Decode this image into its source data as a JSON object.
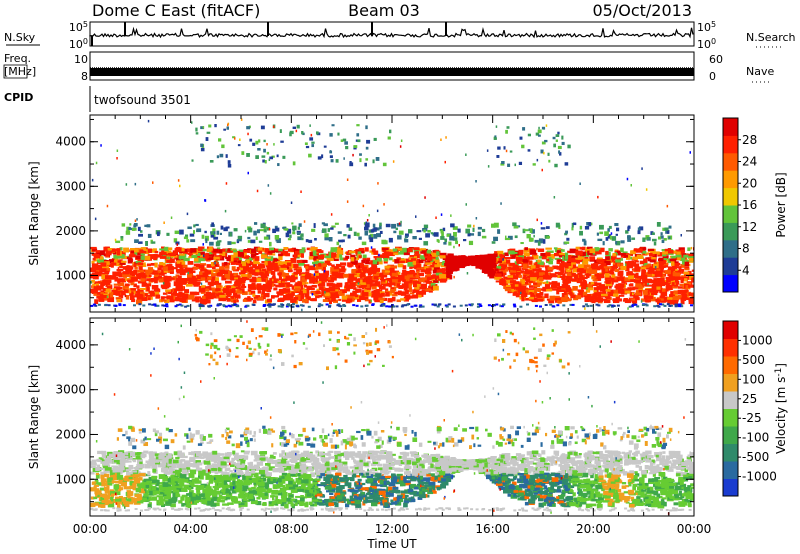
{
  "header": {
    "station": "Dome C East (fitACF)",
    "beam": "Beam 03",
    "date": "05/Oct/2013"
  },
  "status_panels": {
    "nsky_label": "N.Sky",
    "nsearch_label": "N.Search",
    "nsky_ticks": [
      "10^5",
      "10^0"
    ],
    "nsearch_ticks": [
      "10^5",
      "10^0"
    ],
    "freq_label": [
      "Freq.",
      "[MHz]"
    ],
    "freq_ticks": [
      "10",
      "8"
    ],
    "nave_label": "Nave",
    "nave_ticks": [
      "60",
      "0"
    ],
    "cpid_label": "CPID",
    "cpid_value": "twofsound 3501"
  },
  "chart_data": [
    {
      "type": "heatmap",
      "panel": "power",
      "xlabel": "",
      "ylabel": "Slant Range [km]",
      "xlim_hours": [
        0,
        24
      ],
      "ylim_km": [
        180,
        4600
      ],
      "yticks": [
        "1000",
        "2000",
        "3000",
        "4000"
      ],
      "colorbar": {
        "label": "Power [dB]",
        "ticks": [
          "28",
          "24",
          "20",
          "16",
          "12",
          "8",
          "4"
        ],
        "colors": [
          "#0000ff",
          "#1e3c96",
          "#2f6e88",
          "#3a9a58",
          "#62c43a",
          "#f0c800",
          "#ff9a00",
          "#ff5a00",
          "#ff2000",
          "#e00000"
        ]
      }
    },
    {
      "type": "heatmap",
      "panel": "velocity",
      "xlabel": "Time UT",
      "ylabel": "Slant Range [km]",
      "xlim_hours": [
        0,
        24
      ],
      "ylim_km": [
        180,
        4600
      ],
      "xticks": [
        "00:00",
        "04:00",
        "08:00",
        "12:00",
        "16:00",
        "20:00",
        "00:00"
      ],
      "yticks": [
        "1000",
        "2000",
        "3000",
        "4000"
      ],
      "colorbar": {
        "label": "Velocity [m s^-1]",
        "ticks": [
          "1000",
          "500",
          "100",
          "25",
          "-25",
          "-100",
          "-500",
          "-1000"
        ],
        "colors": [
          "#1a3cd0",
          "#2a6aa0",
          "#2f8a6a",
          "#3fa84a",
          "#66cc33",
          "#c8c8c8",
          "#f0a020",
          "#ff6a00",
          "#ff3000",
          "#e00000"
        ]
      }
    }
  ]
}
